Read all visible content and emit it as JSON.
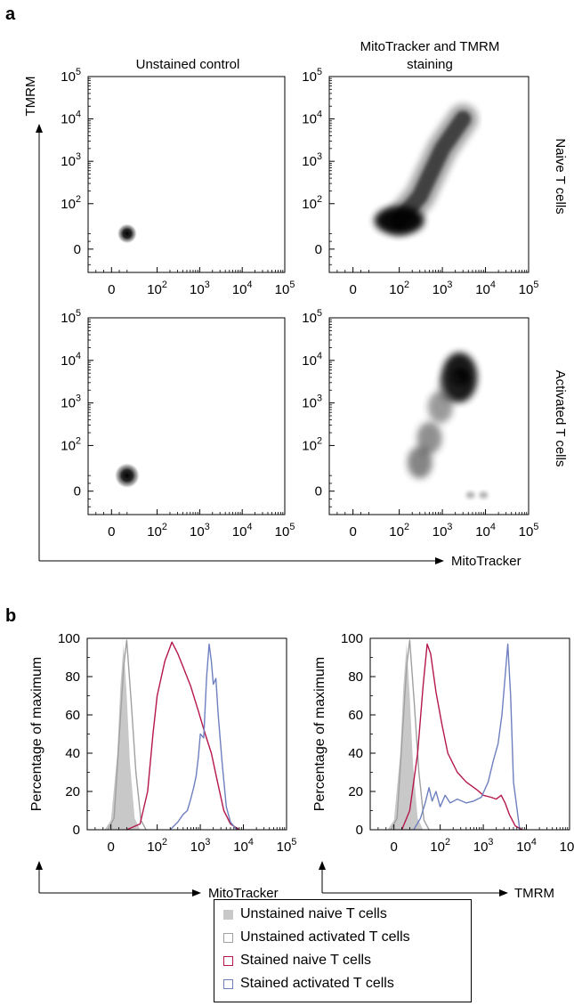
{
  "panels": {
    "a_label": "a",
    "b_label": "b"
  },
  "density": {
    "col_titles": [
      "Unstained control",
      "MitoTracker and TMRM",
      "staining"
    ],
    "row_labels": [
      "Naive T cells",
      "Activated T cells"
    ],
    "ylabel": "TMRM",
    "xlabel": "MitoTracker",
    "tick_labels": [
      "0",
      "10^2",
      "10^3",
      "10^4",
      "10^5"
    ]
  },
  "chart_data": [
    {
      "type": "heatmap",
      "title": "Unstained control",
      "row": "Naive T cells",
      "xlabel": "MitoTracker",
      "ylabel": "TMRM",
      "xscale": "biexponential",
      "yscale": "biexponential",
      "xlim": [
        -30,
        100000
      ],
      "ylim": [
        -30,
        100000
      ],
      "population_center": {
        "x": 20,
        "y": 20
      }
    },
    {
      "type": "heatmap",
      "title": "MitoTracker and TMRM staining",
      "row": "Naive T cells",
      "xlabel": "MitoTracker",
      "ylabel": "TMRM",
      "xscale": "biexponential",
      "yscale": "biexponential",
      "xlim": [
        -30,
        100000
      ],
      "ylim": [
        -30,
        100000
      ],
      "population_trend": {
        "x": [
          100,
          300,
          1000,
          3000
        ],
        "y": [
          40,
          150,
          2000,
          10000
        ]
      }
    },
    {
      "type": "heatmap",
      "title": "Unstained control",
      "row": "Activated T cells",
      "xlabel": "MitoTracker",
      "ylabel": "TMRM",
      "xscale": "biexponential",
      "yscale": "biexponential",
      "xlim": [
        -30,
        100000
      ],
      "ylim": [
        -30,
        100000
      ],
      "population_center": {
        "x": 20,
        "y": 20
      }
    },
    {
      "type": "heatmap",
      "title": "MitoTracker and TMRM staining",
      "row": "Activated T cells",
      "xlabel": "MitoTracker",
      "ylabel": "TMRM",
      "xscale": "biexponential",
      "yscale": "biexponential",
      "xlim": [
        -30,
        100000
      ],
      "ylim": [
        -30,
        100000
      ],
      "population_center": {
        "x": 2500,
        "y": 4000
      }
    },
    {
      "type": "area",
      "xlabel": "MitoTracker",
      "ylabel": "Percentage of  maximum",
      "xscale": "biexponential",
      "xlim": [
        -30,
        100000
      ],
      "ylim": [
        0,
        100
      ],
      "yticks": [
        0,
        20,
        40,
        60,
        80,
        100
      ],
      "xtick_labels": [
        "0",
        "10^2",
        "10^3",
        "10^4",
        "10^5"
      ],
      "series": [
        {
          "name": "Unstained naive T cells",
          "x": [
            -8,
            0,
            8,
            12,
            16,
            20,
            24,
            30,
            40
          ],
          "y": [
            0,
            5,
            40,
            75,
            97,
            70,
            35,
            6,
            0
          ]
        },
        {
          "name": "Unstained activated T cells",
          "x": [
            -4,
            4,
            10,
            16,
            20,
            26,
            32,
            42,
            55
          ],
          "y": [
            0,
            6,
            45,
            85,
            99,
            65,
            30,
            5,
            0
          ]
        },
        {
          "name": "Stained naive T cells",
          "x": [
            20,
            40,
            60,
            80,
            100,
            150,
            220,
            300,
            400,
            600,
            900,
            1300,
            1800,
            2500,
            3500,
            5000,
            8000
          ],
          "y": [
            0,
            3,
            20,
            50,
            70,
            88,
            98,
            92,
            85,
            75,
            62,
            50,
            40,
            25,
            10,
            3,
            0
          ]
        },
        {
          "name": "Stained activated T cells",
          "x": [
            200,
            300,
            400,
            500,
            600,
            700,
            800,
            900,
            1000,
            1200,
            1400,
            1600,
            1800,
            2000,
            2300,
            2600,
            3200,
            4000,
            5000,
            7000
          ],
          "y": [
            0,
            4,
            8,
            10,
            16,
            22,
            28,
            38,
            50,
            48,
            80,
            97,
            88,
            76,
            79,
            60,
            35,
            12,
            4,
            0
          ]
        }
      ]
    },
    {
      "type": "area",
      "xlabel": "TMRM",
      "ylabel": "Percentage of  maximum",
      "xscale": "biexponential",
      "xlim": [
        -30,
        100000
      ],
      "ylim": [
        0,
        100
      ],
      "yticks": [
        0,
        20,
        40,
        60,
        80,
        100
      ],
      "xtick_labels": [
        "0",
        "10^2",
        "10^3",
        "10^4",
        "10^5"
      ],
      "series": [
        {
          "name": "Unstained naive T cells",
          "x": [
            -8,
            0,
            8,
            12,
            16,
            20,
            24,
            30,
            40
          ],
          "y": [
            0,
            5,
            40,
            75,
            97,
            70,
            35,
            6,
            0
          ]
        },
        {
          "name": "Unstained activated T cells",
          "x": [
            -4,
            4,
            10,
            16,
            20,
            26,
            32,
            42,
            55
          ],
          "y": [
            0,
            6,
            45,
            85,
            99,
            65,
            30,
            5,
            0
          ]
        },
        {
          "name": "Stained naive T cells",
          "x": [
            10,
            20,
            30,
            40,
            50,
            60,
            80,
            110,
            150,
            250,
            400,
            700,
            1000,
            1500,
            2000,
            2600,
            3200,
            4000,
            5500,
            8000
          ],
          "y": [
            0,
            10,
            40,
            75,
            97,
            92,
            72,
            55,
            40,
            30,
            25,
            21,
            18,
            17,
            16,
            18,
            14,
            8,
            2,
            0
          ]
        },
        {
          "name": "Stained activated T cells",
          "x": [
            25,
            35,
            45,
            55,
            65,
            80,
            100,
            130,
            170,
            250,
            400,
            600,
            900,
            1300,
            1700,
            2200,
            2700,
            3200,
            3700,
            4300,
            5000,
            7000
          ],
          "y": [
            0,
            6,
            14,
            22,
            15,
            20,
            12,
            18,
            14,
            16,
            14,
            15,
            17,
            25,
            36,
            45,
            60,
            80,
            97,
            70,
            25,
            0
          ]
        }
      ]
    }
  ],
  "legend": {
    "items": [
      {
        "label": "Unstained naive T cells",
        "kind": "filled",
        "color": "#c8c8c8"
      },
      {
        "label": "Unstained activated T cells",
        "kind": "outline",
        "color": "#a0a0a0"
      },
      {
        "label": "Stained naive T cells",
        "kind": "outline",
        "color": "#b5174b"
      },
      {
        "label": "Stained activated T cells",
        "kind": "outline",
        "color": "#6e7fc0"
      }
    ]
  }
}
